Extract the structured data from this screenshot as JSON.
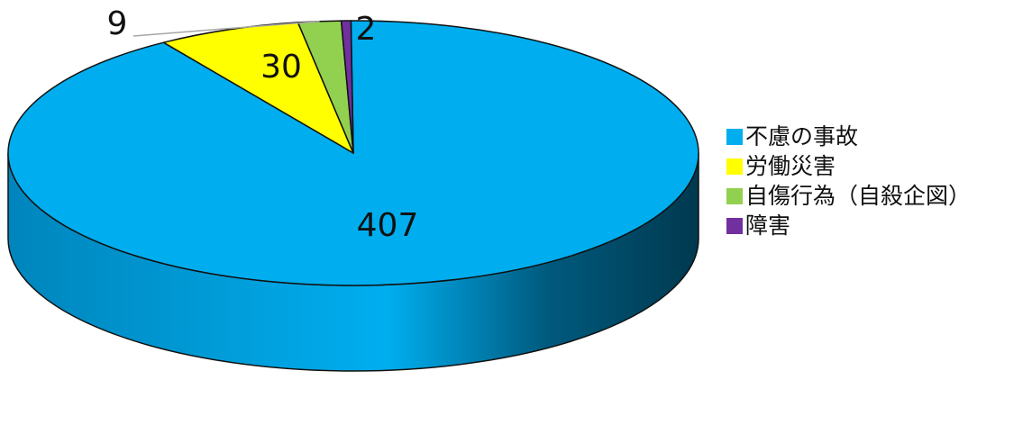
{
  "chart_data": {
    "type": "pie",
    "style": "3d",
    "title": "",
    "legend_position": "right",
    "categories": [
      "不慮の事故",
      "労働災害",
      "自傷行為（自殺企図）",
      "障害"
    ],
    "values": [
      407,
      30,
      9,
      2
    ],
    "data_labels": [
      "407",
      "30",
      "9",
      "2"
    ],
    "colors": [
      "#00AEEF",
      "#FFFF00",
      "#92D050",
      "#7030A0"
    ]
  }
}
